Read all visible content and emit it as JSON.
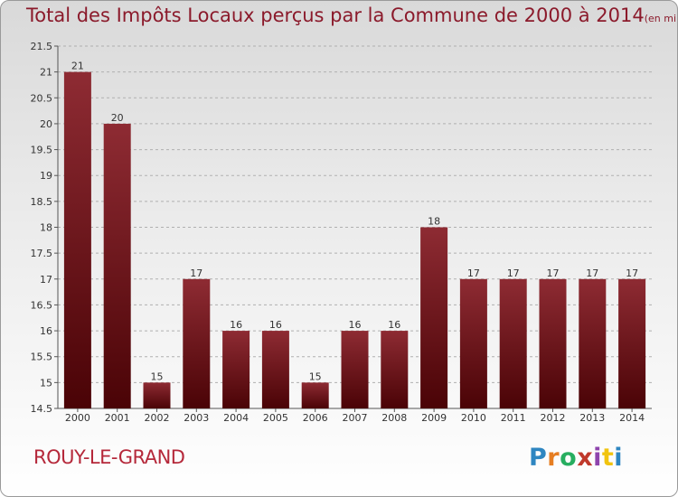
{
  "header": {
    "title": "Total des Impôts Locaux perçus par la Commune de 2000 à 2014",
    "unit": "(en milliers d'€)"
  },
  "footer": {
    "commune": "ROUY-LE-GRAND",
    "brand": [
      "P",
      "r",
      "o",
      "x",
      "i",
      "t",
      "i"
    ],
    "brand_colors": [
      "#2e86c1",
      "#e67e22",
      "#27ae60",
      "#c0392b",
      "#8e44ad",
      "#f1c40f",
      "#2e86c1"
    ]
  },
  "colors": {
    "title": "#8b1a2b",
    "bar_light": "#8e2b33",
    "bar_dark": "#4a0306",
    "grid": "#b0b0b0"
  },
  "chart_data": {
    "type": "bar",
    "title": "Total des Impôts Locaux perçus par la Commune de 2000 à 2014",
    "categories": [
      "2000",
      "2001",
      "2002",
      "2003",
      "2004",
      "2005",
      "2006",
      "2007",
      "2008",
      "2009",
      "2010",
      "2011",
      "2012",
      "2013",
      "2014"
    ],
    "values": [
      21,
      20,
      15,
      17,
      16,
      16,
      15,
      16,
      16,
      18,
      17,
      17,
      17,
      17,
      17
    ],
    "data_labels": [
      "21",
      "20",
      "15",
      "17",
      "16",
      "16",
      "15",
      "16",
      "16",
      "18",
      "17",
      "17",
      "17",
      "17",
      "17"
    ],
    "yticks": [
      "14.5",
      "15",
      "15.5",
      "16",
      "16.5",
      "17",
      "17.5",
      "18",
      "18.5",
      "19",
      "19.5",
      "20",
      "20.5",
      "21",
      "21.5"
    ],
    "ylim": [
      14.5,
      21.5
    ],
    "xlabel": "",
    "ylabel": "",
    "grid": "horizontal dashed",
    "legend": "none"
  }
}
